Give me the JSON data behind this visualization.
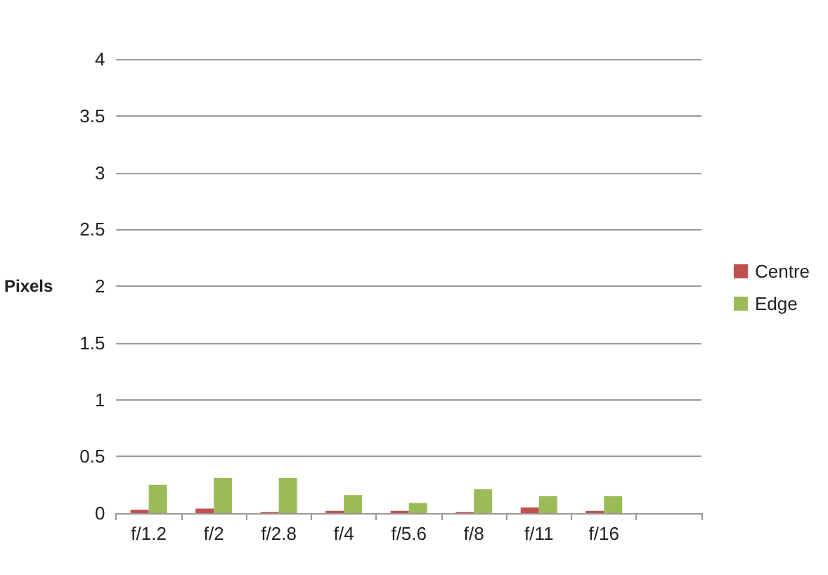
{
  "chart_data": {
    "type": "bar",
    "ylabel": "Pixels",
    "categories": [
      "f/1.2",
      "f/2",
      "f/2.8",
      "f/4",
      "f/5.6",
      "f/8",
      "f/11",
      "f/16",
      null
    ],
    "series": [
      {
        "name": "Centre",
        "color": "#c0504d",
        "values": [
          0.03,
          0.04,
          0.01,
          0.02,
          0.02,
          0.01,
          0.05,
          0.02,
          null
        ]
      },
      {
        "name": "Edge",
        "color": "#9bbb59",
        "values": [
          0.25,
          0.31,
          0.31,
          0.16,
          0.09,
          0.21,
          0.15,
          0.15,
          null
        ]
      }
    ],
    "ylim": [
      0,
      4
    ],
    "yticks": [
      0,
      0.5,
      1,
      1.5,
      2,
      2.5,
      3,
      3.5,
      4
    ],
    "grid": "y",
    "legend": "right"
  }
}
